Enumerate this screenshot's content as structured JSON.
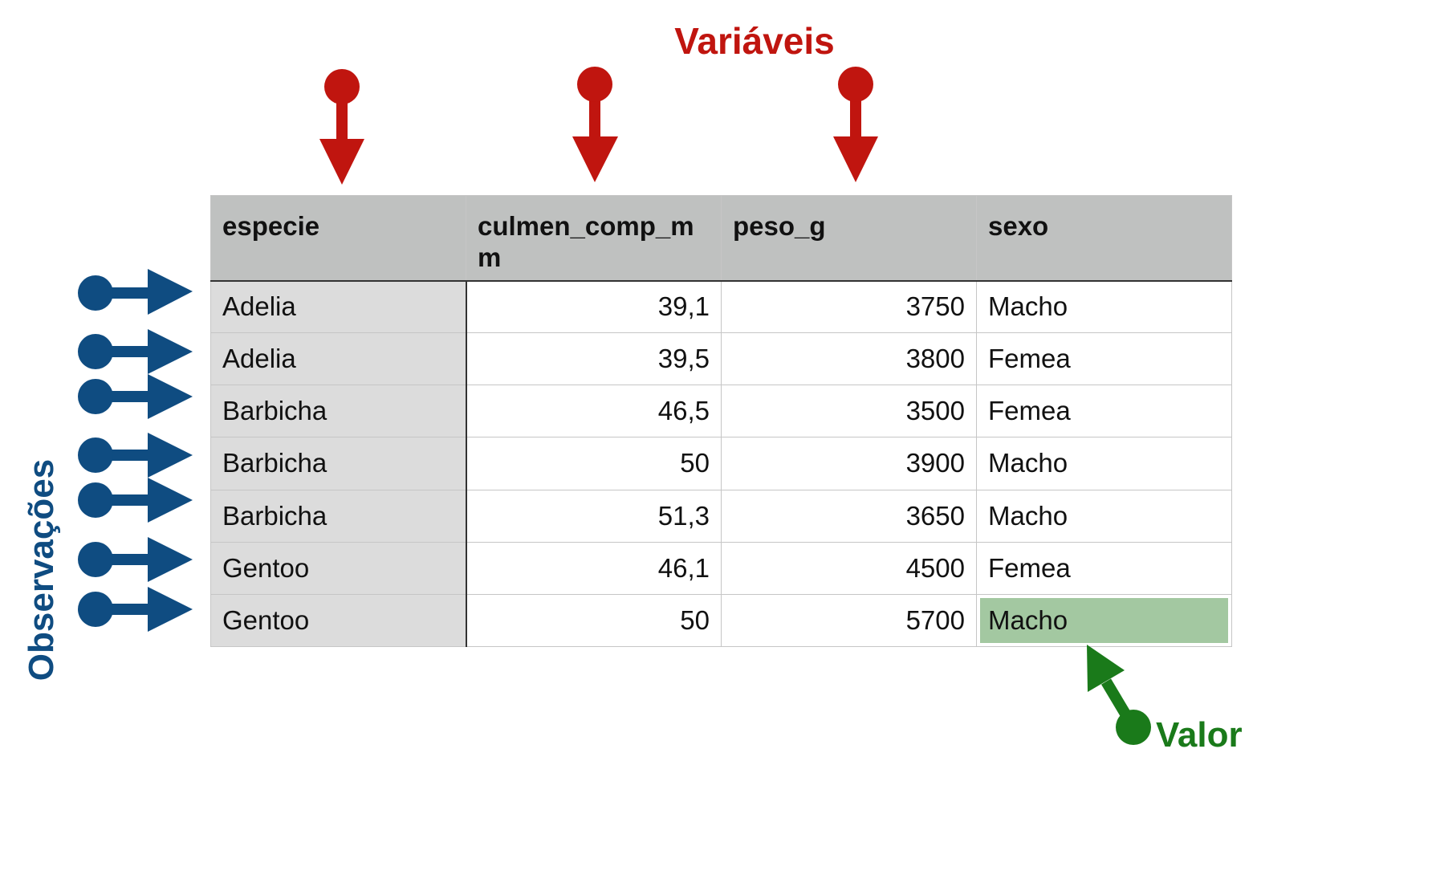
{
  "labels": {
    "variables": "Variáveis",
    "observations": "Observações",
    "value": "Valor"
  },
  "colors": {
    "variables_arrow": "#c0150f",
    "observations_arrow": "#0f4c81",
    "value_arrow": "#1a7a1a",
    "header_bg": "#bfc1c0",
    "id_column_bg": "#dcdcdc",
    "highlight_cell_bg": "#a3c8a1"
  },
  "table": {
    "columns": [
      "especie",
      "culmen_comp_mm",
      "peso_g",
      "sexo"
    ],
    "rows": [
      [
        "Adelia",
        "39,1",
        "3750",
        "Macho"
      ],
      [
        "Adelia",
        "39,5",
        "3800",
        "Femea"
      ],
      [
        "Barbicha",
        "46,5",
        "3500",
        "Femea"
      ],
      [
        "Barbicha",
        "50",
        "3900",
        "Macho"
      ],
      [
        "Barbicha",
        "51,3",
        "3650",
        "Macho"
      ],
      [
        "Gentoo",
        "46,1",
        "4500",
        "Femea"
      ],
      [
        "Gentoo",
        "50",
        "5700",
        "Macho"
      ]
    ],
    "highlighted_cell": {
      "row": 6,
      "column": 3
    }
  },
  "icons": {
    "variable_pointer": "pin-arrow-down-icon",
    "observation_pointer": "pin-arrow-right-icon",
    "value_pointer": "pin-arrow-up-left-icon"
  }
}
